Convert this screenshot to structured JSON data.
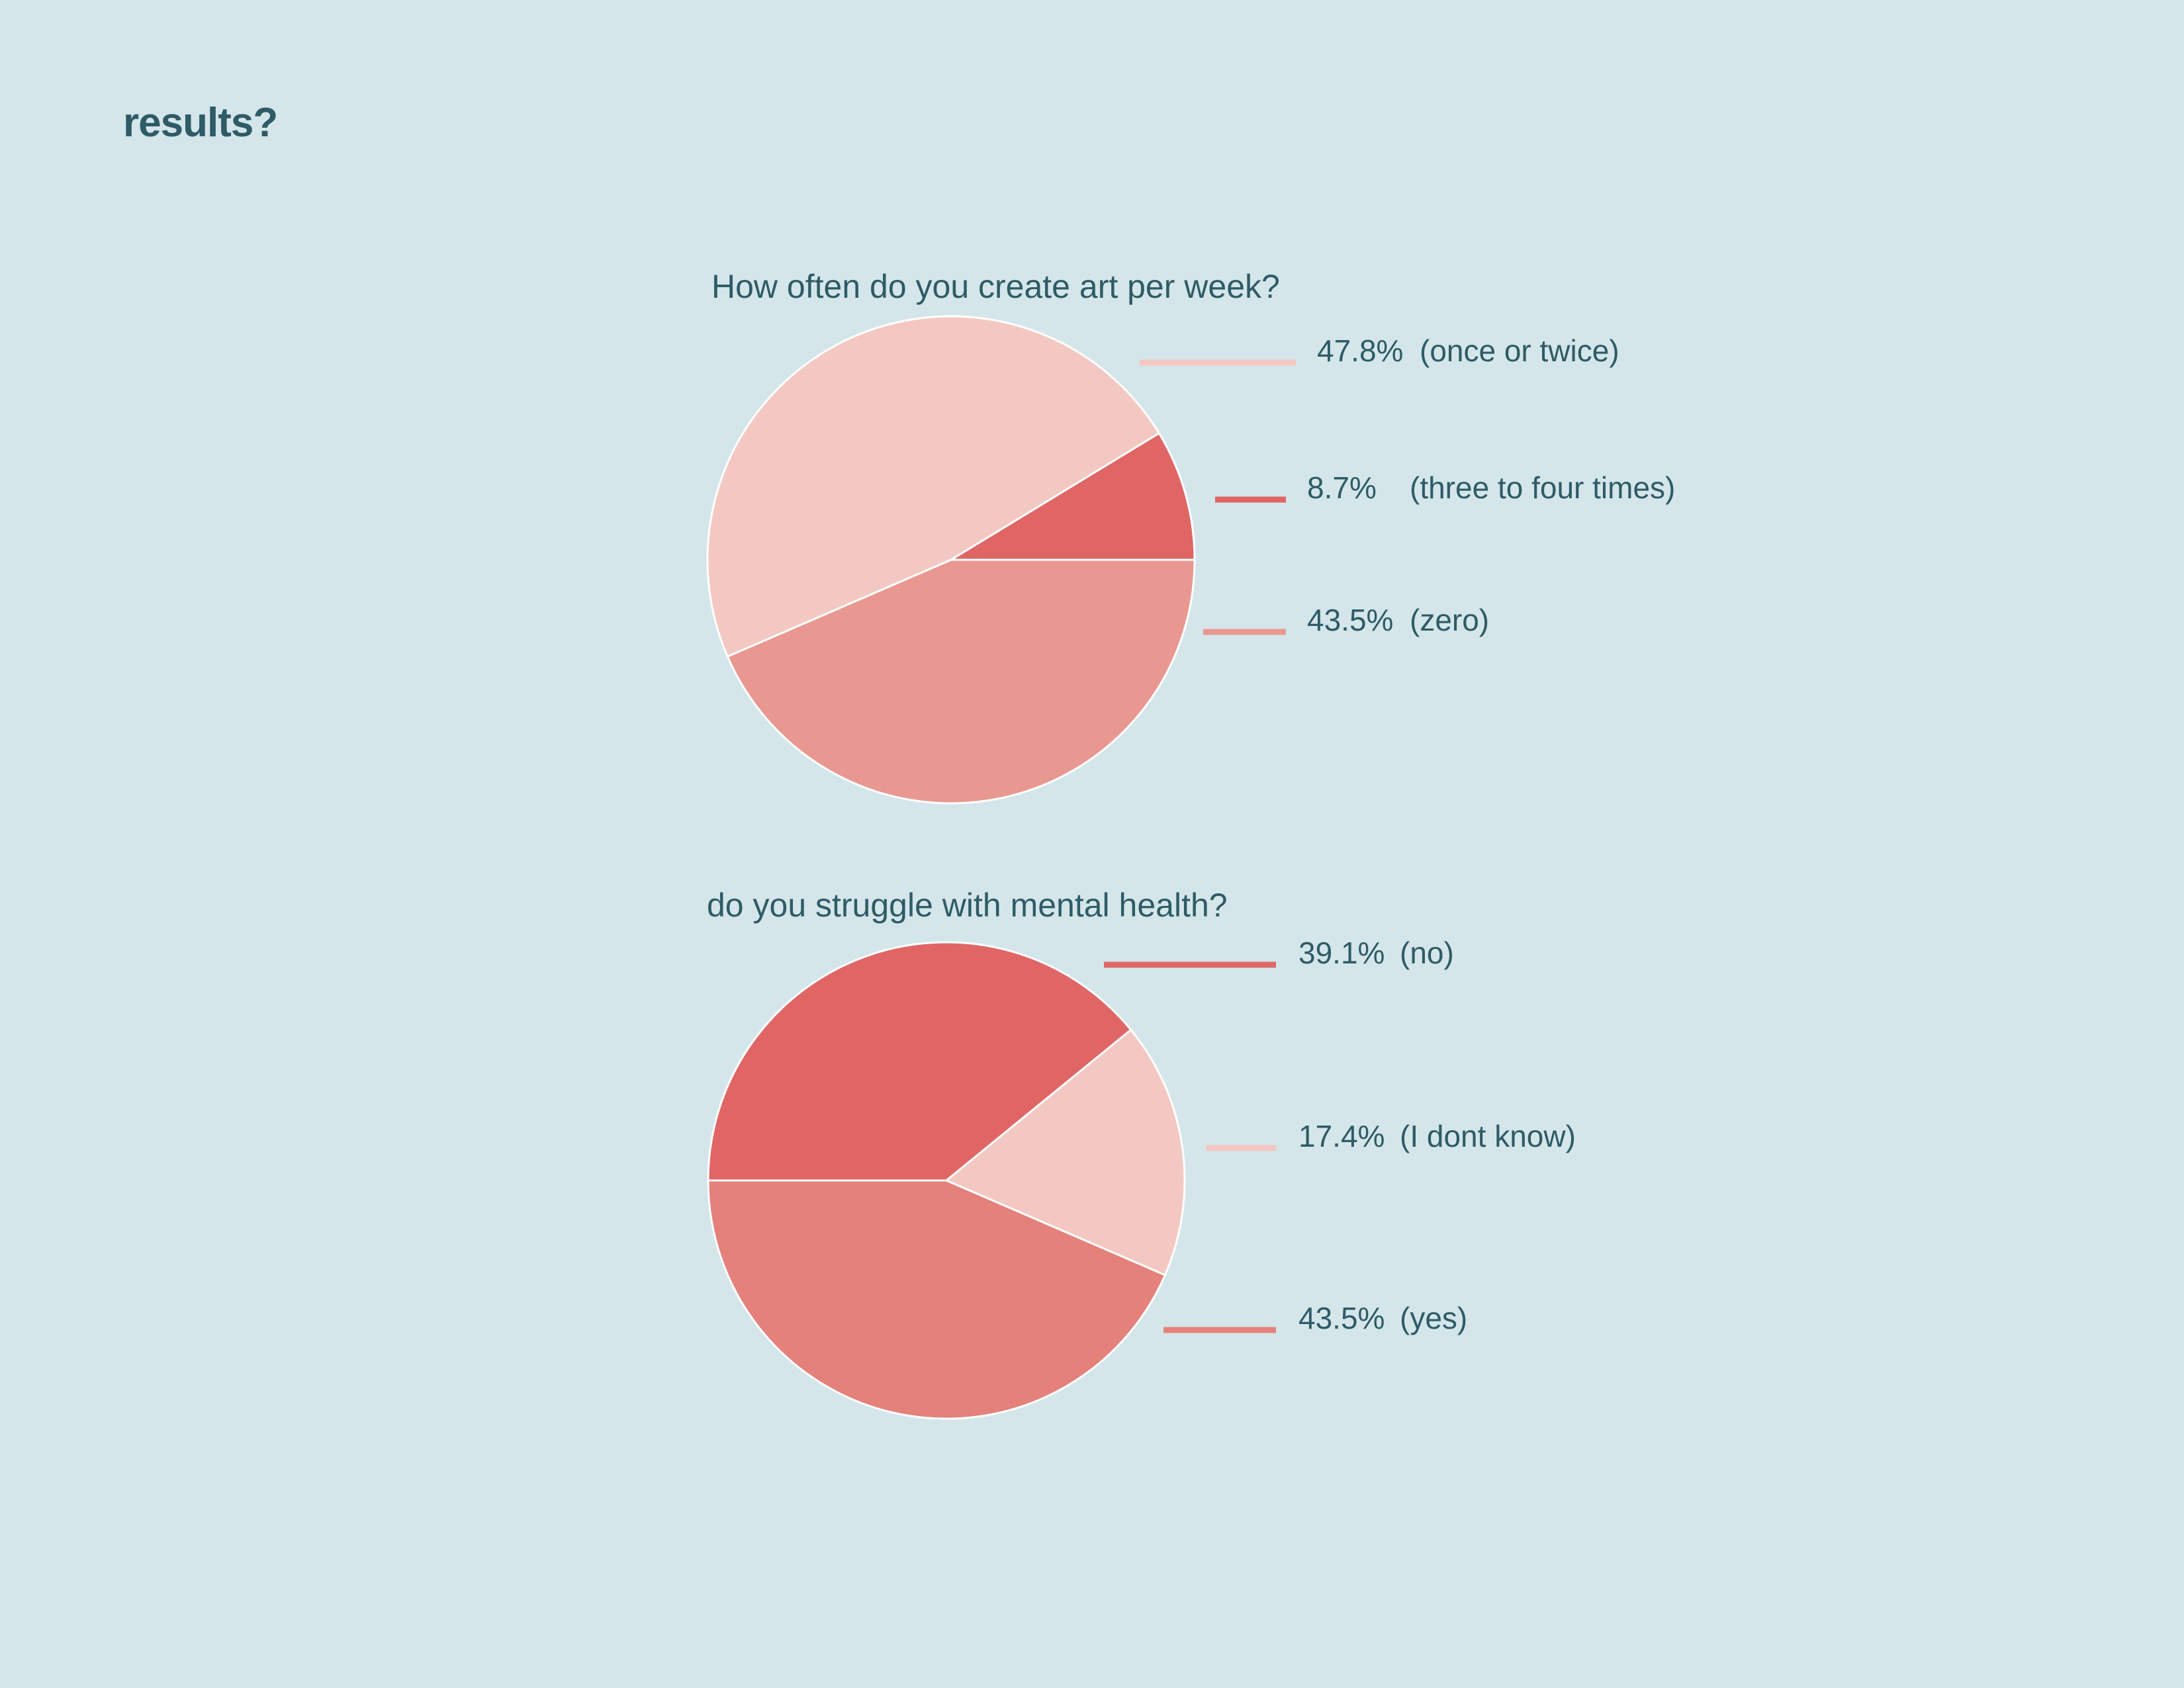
{
  "page": {
    "title": "results?"
  },
  "colors": {
    "background": "#d4e6ea",
    "text": "#2e5b66"
  },
  "chart_data": [
    {
      "type": "pie",
      "title": "How often do you create art per week?",
      "slices": [
        {
          "value_label": "47.8%",
          "category": "(once or twice)",
          "value": 47.8,
          "color": "#f4c8c2"
        },
        {
          "value_label": "8.7%",
          "category": "(three to four times)",
          "value": 8.7,
          "color": "#e06666"
        },
        {
          "value_label": "43.5%",
          "category": "(zero)",
          "value": 43.5,
          "color": "#e89890"
        }
      ]
    },
    {
      "type": "pie",
      "title": "do you struggle with mental health?",
      "slices": [
        {
          "value_label": "39.1%",
          "category": "(no)",
          "value": 39.1,
          "color": "#e06666"
        },
        {
          "value_label": "17.4%",
          "category": "(I dont know)",
          "value": 17.4,
          "color": "#f4c8c2"
        },
        {
          "value_label": "43.5%",
          "category": "(yes)",
          "value": 43.5,
          "color": "#e4817b"
        }
      ]
    }
  ]
}
